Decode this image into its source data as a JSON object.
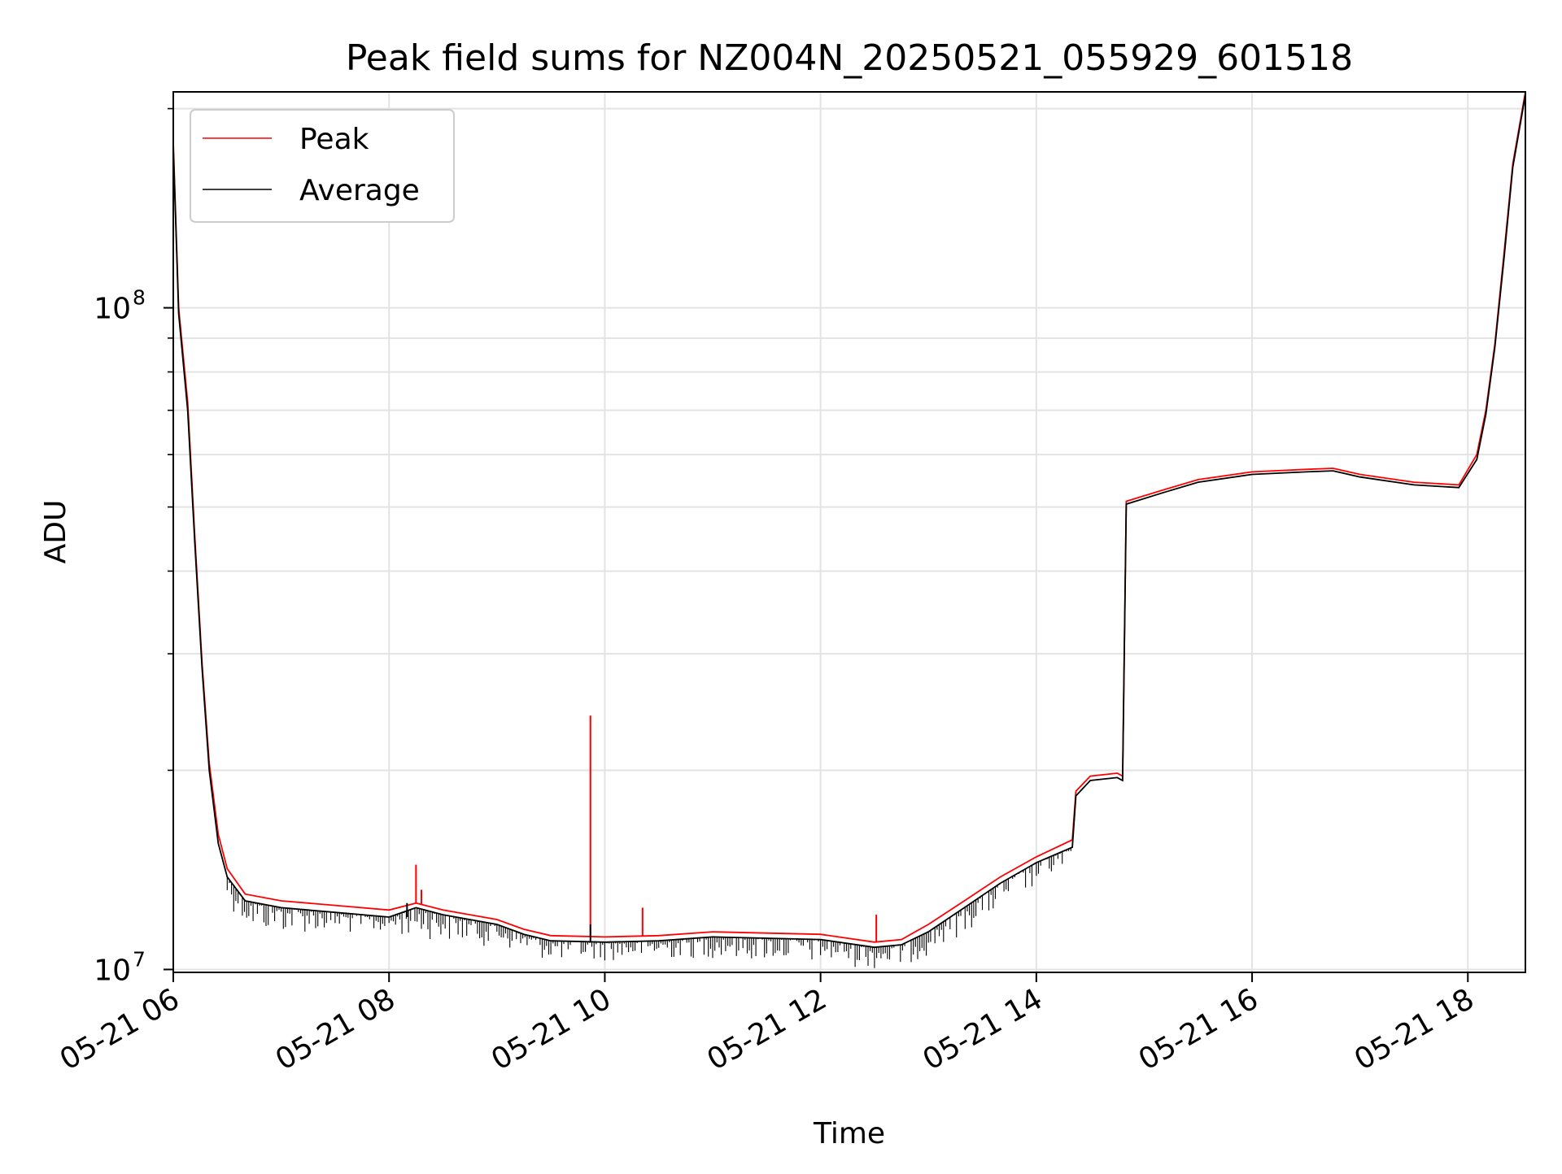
{
  "chart_data": {
    "type": "line",
    "title": "Peak field sums for NZ004N_20250521_055929_601518",
    "xlabel": "Time",
    "ylabel": "ADU",
    "y_scale": "log",
    "ylim": [
      9900000,
      212000000
    ],
    "xlim": [
      "2025-05-21 06:00",
      "2025-05-21 18:32"
    ],
    "x_ticks": [
      {
        "t": "2025-05-21 06:00",
        "label": "05-21 06"
      },
      {
        "t": "2025-05-21 08:00",
        "label": "05-21 08"
      },
      {
        "t": "2025-05-21 10:00",
        "label": "05-21 10"
      },
      {
        "t": "2025-05-21 12:00",
        "label": "05-21 12"
      },
      {
        "t": "2025-05-21 14:00",
        "label": "05-21 14"
      },
      {
        "t": "2025-05-21 16:00",
        "label": "05-21 16"
      },
      {
        "t": "2025-05-21 18:00",
        "label": "05-21 18"
      }
    ],
    "y_major_ticks": [
      {
        "value": 10000000,
        "base": "10",
        "exp": "7"
      },
      {
        "value": 100000000,
        "base": "10",
        "exp": "8"
      }
    ],
    "y_minor_ticks": [
      20000000,
      30000000,
      40000000,
      50000000,
      60000000,
      70000000,
      80000000,
      90000000,
      200000000
    ],
    "grid": true,
    "legend_position": "top-left",
    "series": [
      {
        "name": "Peak",
        "color": "#ff0000",
        "points": [
          [
            "2025-05-21 06:00",
            178000000
          ],
          [
            "2025-05-21 06:03",
            100000000
          ],
          [
            "2025-05-21 06:08",
            72000000
          ],
          [
            "2025-05-21 06:12",
            45000000
          ],
          [
            "2025-05-21 06:16",
            29000000
          ],
          [
            "2025-05-21 06:20",
            20500000
          ],
          [
            "2025-05-21 06:25",
            16000000
          ],
          [
            "2025-05-21 06:30",
            14200000
          ],
          [
            "2025-05-21 06:40",
            13000000
          ],
          [
            "2025-05-21 07:00",
            12700000
          ],
          [
            "2025-05-21 07:30",
            12500000
          ],
          [
            "2025-05-21 08:00",
            12300000
          ],
          [
            "2025-05-21 08:15",
            12600000
          ],
          [
            "2025-05-21 08:30",
            12300000
          ],
          [
            "2025-05-21 09:00",
            11900000
          ],
          [
            "2025-05-21 09:15",
            11500000
          ],
          [
            "2025-05-21 09:30",
            11250000
          ],
          [
            "2025-05-21 10:00",
            11200000
          ],
          [
            "2025-05-21 10:30",
            11250000
          ],
          [
            "2025-05-21 11:00",
            11400000
          ],
          [
            "2025-05-21 11:30",
            11350000
          ],
          [
            "2025-05-21 12:00",
            11300000
          ],
          [
            "2025-05-21 12:30",
            11000000
          ],
          [
            "2025-05-21 12:45",
            11100000
          ],
          [
            "2025-05-21 13:00",
            11700000
          ],
          [
            "2025-05-21 13:20",
            12700000
          ],
          [
            "2025-05-21 13:40",
            13800000
          ],
          [
            "2025-05-21 14:00",
            14800000
          ],
          [
            "2025-05-21 14:20",
            15700000
          ],
          [
            "2025-05-21 14:22",
            18600000
          ],
          [
            "2025-05-21 14:30",
            19600000
          ],
          [
            "2025-05-21 14:45",
            19800000
          ],
          [
            "2025-05-21 14:48",
            19600000
          ],
          [
            "2025-05-21 14:50",
            51000000
          ],
          [
            "2025-05-21 15:10",
            53000000
          ],
          [
            "2025-05-21 15:30",
            55000000
          ],
          [
            "2025-05-21 16:00",
            56500000
          ],
          [
            "2025-05-21 16:30",
            57000000
          ],
          [
            "2025-05-21 16:45",
            57200000
          ],
          [
            "2025-05-21 17:00",
            56000000
          ],
          [
            "2025-05-21 17:30",
            54500000
          ],
          [
            "2025-05-21 17:55",
            54000000
          ],
          [
            "2025-05-21 18:05",
            60000000
          ],
          [
            "2025-05-21 18:10",
            70000000
          ],
          [
            "2025-05-21 18:15",
            88000000
          ],
          [
            "2025-05-21 18:20",
            120000000
          ],
          [
            "2025-05-21 18:25",
            165000000
          ],
          [
            "2025-05-21 18:32",
            212000000
          ]
        ],
        "spikes": [
          [
            "2025-05-21 08:15",
            14400000
          ],
          [
            "2025-05-21 08:18",
            13200000
          ],
          [
            "2025-05-21 09:52",
            24200000
          ],
          [
            "2025-05-21 10:21",
            12400000
          ],
          [
            "2025-05-21 12:31",
            12100000
          ]
        ]
      },
      {
        "name": "Average",
        "color": "#000000",
        "points": [
          [
            "2025-05-21 06:00",
            175000000
          ],
          [
            "2025-05-21 06:03",
            98000000
          ],
          [
            "2025-05-21 06:08",
            70000000
          ],
          [
            "2025-05-21 06:12",
            44000000
          ],
          [
            "2025-05-21 06:16",
            28500000
          ],
          [
            "2025-05-21 06:20",
            20000000
          ],
          [
            "2025-05-21 06:25",
            15500000
          ],
          [
            "2025-05-21 06:30",
            13800000
          ],
          [
            "2025-05-21 06:40",
            12700000
          ],
          [
            "2025-05-21 07:00",
            12400000
          ],
          [
            "2025-05-21 07:30",
            12200000
          ],
          [
            "2025-05-21 08:00",
            12000000
          ],
          [
            "2025-05-21 08:15",
            12400000
          ],
          [
            "2025-05-21 08:30",
            12100000
          ],
          [
            "2025-05-21 09:00",
            11700000
          ],
          [
            "2025-05-21 09:15",
            11300000
          ],
          [
            "2025-05-21 09:30",
            11050000
          ],
          [
            "2025-05-21 10:00",
            11000000
          ],
          [
            "2025-05-21 10:30",
            11050000
          ],
          [
            "2025-05-21 11:00",
            11200000
          ],
          [
            "2025-05-21 11:30",
            11150000
          ],
          [
            "2025-05-21 12:00",
            11100000
          ],
          [
            "2025-05-21 12:30",
            10800000
          ],
          [
            "2025-05-21 12:45",
            10900000
          ],
          [
            "2025-05-21 13:00",
            11400000
          ],
          [
            "2025-05-21 13:20",
            12400000
          ],
          [
            "2025-05-21 13:40",
            13500000
          ],
          [
            "2025-05-21 14:00",
            14500000
          ],
          [
            "2025-05-21 14:20",
            15300000
          ],
          [
            "2025-05-21 14:22",
            18300000
          ],
          [
            "2025-05-21 14:30",
            19300000
          ],
          [
            "2025-05-21 14:45",
            19500000
          ],
          [
            "2025-05-21 14:48",
            19300000
          ],
          [
            "2025-05-21 14:50",
            50500000
          ],
          [
            "2025-05-21 15:10",
            52500000
          ],
          [
            "2025-05-21 15:30",
            54500000
          ],
          [
            "2025-05-21 16:00",
            56000000
          ],
          [
            "2025-05-21 16:30",
            56500000
          ],
          [
            "2025-05-21 16:45",
            56700000
          ],
          [
            "2025-05-21 17:00",
            55500000
          ],
          [
            "2025-05-21 17:30",
            54000000
          ],
          [
            "2025-05-21 17:55",
            53500000
          ],
          [
            "2025-05-21 18:05",
            59000000
          ],
          [
            "2025-05-21 18:10",
            69000000
          ],
          [
            "2025-05-21 18:15",
            87000000
          ],
          [
            "2025-05-21 18:20",
            118000000
          ],
          [
            "2025-05-21 18:25",
            163000000
          ],
          [
            "2025-05-21 18:32",
            210000000
          ]
        ],
        "noise_floor": [
          [
            "2025-05-21 06:30",
            12500000
          ],
          [
            "2025-05-21 06:45",
            11400000
          ],
          [
            "2025-05-21 08:00",
            11300000
          ],
          [
            "2025-05-21 09:00",
            10800000
          ],
          [
            "2025-05-21 09:30",
            10300000
          ],
          [
            "2025-05-21 10:00",
            10300000
          ],
          [
            "2025-05-21 11:00",
            10400000
          ],
          [
            "2025-05-21 12:00",
            10200000
          ],
          [
            "2025-05-21 12:40",
            9950000
          ],
          [
            "2025-05-21 13:00",
            10500000
          ],
          [
            "2025-05-21 13:40",
            12300000
          ],
          [
            "2025-05-21 14:20",
            14400000
          ]
        ]
      }
    ]
  }
}
